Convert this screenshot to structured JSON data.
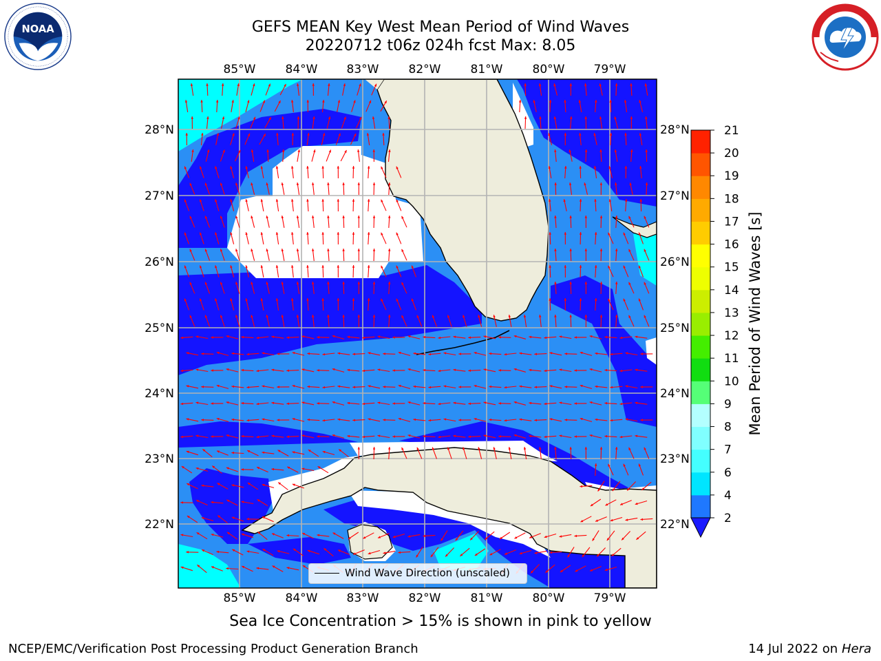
{
  "title": {
    "line1": "GEFS MEAN Key West Mean Period of Wind Waves",
    "line2": "20220712 t06z 024h fcst   Max: 8.05"
  },
  "logos": {
    "left": "noaa-logo",
    "right": "national-weather-service-logo"
  },
  "map": {
    "lon_labels": [
      "85°W",
      "84°W",
      "83°W",
      "82°W",
      "81°W",
      "80°W",
      "79°W"
    ],
    "lat_labels": [
      "28°N",
      "27°N",
      "26°N",
      "25°N",
      "24°N",
      "23°N",
      "22°N"
    ],
    "legend_label": "Wind Wave Direction (unscaled)",
    "colors": {
      "land": "#eeeddc",
      "band_2_4": "#2b8ff5",
      "band_below_2": "#1414ff",
      "band_4_6": "#00ffff",
      "arrow": "#ff0000"
    }
  },
  "colorbar": {
    "label": "Mean Period of Wind Waves [s]",
    "ticks": [
      "2",
      "4",
      "6",
      "7",
      "8",
      "9",
      "10",
      "11",
      "12",
      "13",
      "14",
      "15",
      "16",
      "17",
      "18",
      "19",
      "20",
      "21"
    ],
    "colors": [
      "#1f78ff",
      "#00e5ff",
      "#44ffff",
      "#80ffff",
      "#b3ffff",
      "#55ff77",
      "#11dd11",
      "#44ee00",
      "#99ee00",
      "#ccee00",
      "#eeff00",
      "#ffff00",
      "#ffcc00",
      "#ffaa00",
      "#ff8800",
      "#ff5500",
      "#ff2200",
      "#ff0000"
    ],
    "extend_color": "#1a1aff"
  },
  "footer": {
    "subtitle": "Sea Ice Concentration > 15% is shown in pink to yellow",
    "credit_left": "NCEP/EMC/Verification Post Processing Product Generation Branch",
    "credit_date": "14 Jul 2022 on ",
    "credit_host": "Hera"
  }
}
